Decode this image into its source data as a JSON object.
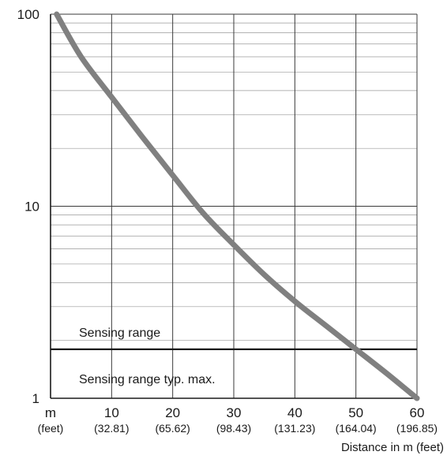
{
  "chart_data": {
    "type": "line",
    "title": "",
    "xlabel": "Distance in m (feet)",
    "ylabel": "",
    "xlim": [
      0,
      60
    ],
    "ylim": [
      1,
      100
    ],
    "y_scale": "log",
    "grid": true,
    "x_ticks": [
      {
        "value": 0,
        "label": "m",
        "sublabel": "(feet)"
      },
      {
        "value": 10,
        "label": "10",
        "sublabel": "(32.81)"
      },
      {
        "value": 20,
        "label": "20",
        "sublabel": "(65.62)"
      },
      {
        "value": 30,
        "label": "30",
        "sublabel": "(98.43)"
      },
      {
        "value": 40,
        "label": "40",
        "sublabel": "(131.23)"
      },
      {
        "value": 50,
        "label": "50",
        "sublabel": "(164.04)"
      },
      {
        "value": 60,
        "label": "60",
        "sublabel": "(196.85)"
      }
    ],
    "y_ticks": [
      {
        "value": 1,
        "label": "1"
      },
      {
        "value": 10,
        "label": "10"
      },
      {
        "value": 100,
        "label": "100"
      }
    ],
    "series": [
      {
        "color": "#808080",
        "x": [
          1,
          5,
          10,
          15,
          20,
          25,
          30,
          35,
          40,
          45,
          50,
          55,
          60
        ],
        "y": [
          100,
          60,
          37,
          23,
          14.5,
          9.2,
          6.3,
          4.4,
          3.2,
          2.4,
          1.8,
          1.35,
          1.0
        ]
      }
    ],
    "threshold": {
      "y": 1.8,
      "label_above": "Sensing range",
      "label_below": "Sensing range typ. max."
    }
  }
}
